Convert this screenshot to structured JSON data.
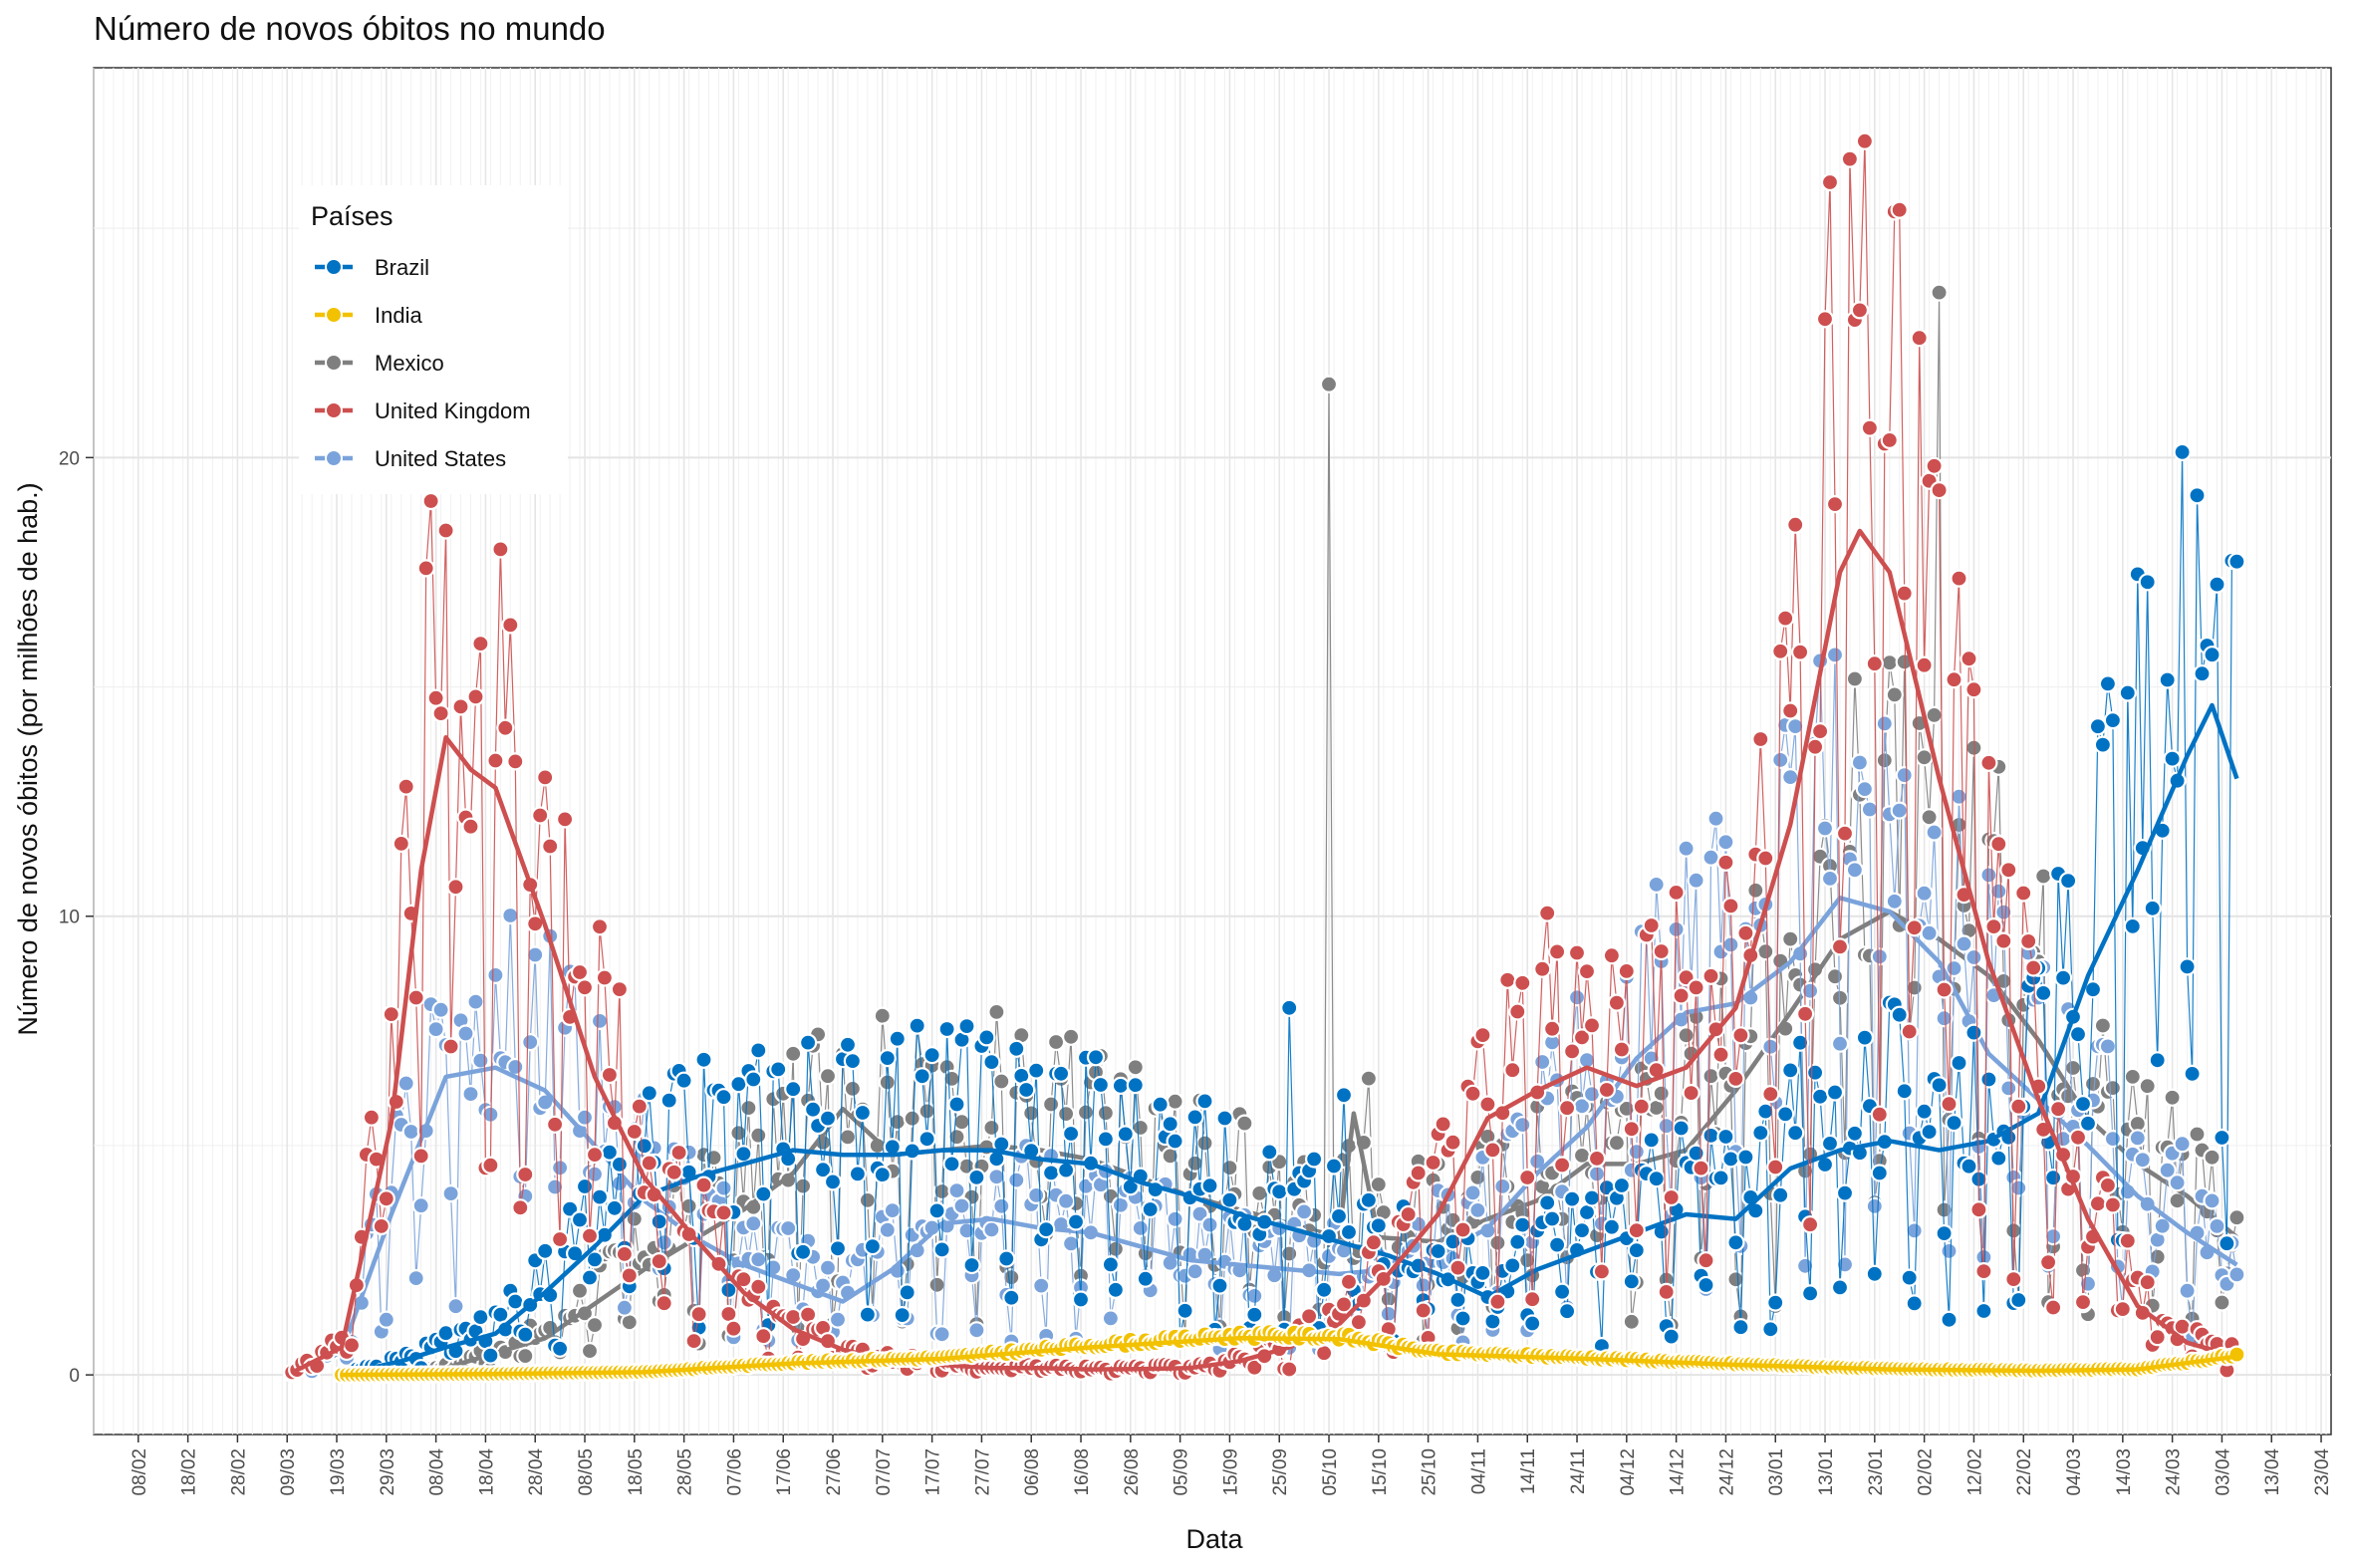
{
  "chart_data": {
    "type": "line",
    "title": "Número de novos óbitos no mundo",
    "xlabel": "Data",
    "ylabel": "Número de novos óbitos (por milhões de hab.)",
    "xlim": [
      "2020-01-30",
      "2021-04-25"
    ],
    "ylim": [
      -1.3,
      28.5
    ],
    "y_ticks": [
      0,
      10,
      20
    ],
    "x_ticks": [
      "08/02",
      "18/02",
      "28/02",
      "09/03",
      "19/03",
      "29/03",
      "08/04",
      "18/04",
      "28/04",
      "08/05",
      "18/05",
      "28/05",
      "07/06",
      "17/06",
      "27/06",
      "07/07",
      "17/07",
      "27/07",
      "06/08",
      "16/08",
      "26/08",
      "05/09",
      "15/09",
      "25/09",
      "05/10",
      "15/10",
      "25/10",
      "04/11",
      "14/11",
      "24/11",
      "04/12",
      "14/12",
      "24/12",
      "03/01",
      "13/01",
      "23/01",
      "02/02",
      "12/02",
      "22/02",
      "04/03",
      "14/03",
      "24/03",
      "03/04",
      "13/04",
      "23/04"
    ],
    "grid": true,
    "legend": {
      "title": "Países",
      "position": "top-left"
    },
    "series_style": "points = daily values, thick line = 7-day moving average",
    "series": [
      {
        "name": "Brazil",
        "color": "#0072c3",
        "points": [
          [
            "2020-03-20",
            0.01
          ],
          [
            "2020-04-01",
            0.3
          ],
          [
            "2020-04-10",
            0.6
          ],
          [
            "2020-04-20",
            0.9
          ],
          [
            "2020-04-30",
            1.8
          ],
          [
            "2020-05-10",
            2.8
          ],
          [
            "2020-05-20",
            3.9
          ],
          [
            "2020-05-30",
            4.3
          ],
          [
            "2020-06-09",
            4.6
          ],
          [
            "2020-06-19",
            4.9
          ],
          [
            "2020-06-29",
            4.8
          ],
          [
            "2020-07-09",
            4.8
          ],
          [
            "2020-07-19",
            4.9
          ],
          [
            "2020-07-29",
            4.9
          ],
          [
            "2020-08-08",
            4.7
          ],
          [
            "2020-08-18",
            4.6
          ],
          [
            "2020-08-28",
            4.2
          ],
          [
            "2020-09-07",
            3.9
          ],
          [
            "2020-09-17",
            3.5
          ],
          [
            "2020-09-27",
            3.2
          ],
          [
            "2020-10-07",
            2.9
          ],
          [
            "2020-10-17",
            2.6
          ],
          [
            "2020-10-27",
            2.2
          ],
          [
            "2020-11-06",
            1.7
          ],
          [
            "2020-11-16",
            2.3
          ],
          [
            "2020-11-26",
            2.7
          ],
          [
            "2020-12-06",
            3.1
          ],
          [
            "2020-12-16",
            3.5
          ],
          [
            "2020-12-26",
            3.4
          ],
          [
            "2021-01-06",
            4.5
          ],
          [
            "2021-01-16",
            4.9
          ],
          [
            "2021-01-26",
            5.1
          ],
          [
            "2021-02-05",
            4.9
          ],
          [
            "2021-02-15",
            5.1
          ],
          [
            "2021-02-25",
            5.7
          ],
          [
            "2021-03-07",
            8.7
          ],
          [
            "2021-03-17",
            11.0
          ],
          [
            "2021-03-27",
            13.5
          ],
          [
            "2021-04-01",
            14.6
          ],
          [
            "2021-04-06",
            13.0
          ]
        ],
        "daily_peaks": [
          [
            "2020-09-27",
            8.0
          ],
          [
            "2020-10-08",
            6.1
          ],
          [
            "2021-04-08",
            19.7
          ]
        ]
      },
      {
        "name": "India",
        "color": "#f2c100",
        "points": [
          [
            "2020-03-20",
            0.0
          ],
          [
            "2020-04-20",
            0.02
          ],
          [
            "2020-05-20",
            0.06
          ],
          [
            "2020-06-19",
            0.25
          ],
          [
            "2020-07-19",
            0.35
          ],
          [
            "2020-08-18",
            0.6
          ],
          [
            "2020-09-17",
            0.8
          ],
          [
            "2020-10-07",
            0.78
          ],
          [
            "2020-10-27",
            0.45
          ],
          [
            "2020-11-26",
            0.35
          ],
          [
            "2020-12-26",
            0.22
          ],
          [
            "2021-01-26",
            0.12
          ],
          [
            "2021-02-25",
            0.09
          ],
          [
            "2021-03-17",
            0.12
          ],
          [
            "2021-04-06",
            0.4
          ]
        ]
      },
      {
        "name": "Mexico",
        "color": "#7f7f7f",
        "points": [
          [
            "2020-03-20",
            0.0
          ],
          [
            "2020-04-10",
            0.15
          ],
          [
            "2020-04-30",
            0.8
          ],
          [
            "2020-05-20",
            2.3
          ],
          [
            "2020-06-09",
            3.6
          ],
          [
            "2020-06-19",
            4.4
          ],
          [
            "2020-06-29",
            5.8
          ],
          [
            "2020-07-09",
            4.8
          ],
          [
            "2020-07-19",
            4.9
          ],
          [
            "2020-07-29",
            5.0
          ],
          [
            "2020-08-08",
            4.9
          ],
          [
            "2020-08-18",
            4.7
          ],
          [
            "2020-08-28",
            4.3
          ],
          [
            "2020-09-07",
            3.9
          ],
          [
            "2020-09-17",
            3.6
          ],
          [
            "2020-09-27",
            3.3
          ],
          [
            "2020-10-07",
            3.0
          ],
          [
            "2020-10-10",
            5.7
          ],
          [
            "2020-10-15",
            3.0
          ],
          [
            "2020-10-27",
            2.9
          ],
          [
            "2020-11-06",
            3.4
          ],
          [
            "2020-11-16",
            3.8
          ],
          [
            "2020-11-26",
            4.6
          ],
          [
            "2020-12-06",
            4.6
          ],
          [
            "2020-12-16",
            4.9
          ],
          [
            "2020-12-26",
            6.2
          ],
          [
            "2021-01-06",
            7.9
          ],
          [
            "2021-01-16",
            9.5
          ],
          [
            "2021-01-26",
            10.1
          ],
          [
            "2021-02-05",
            9.5
          ],
          [
            "2021-02-15",
            8.7
          ],
          [
            "2021-02-25",
            7.3
          ],
          [
            "2021-03-07",
            5.6
          ],
          [
            "2021-03-17",
            4.6
          ],
          [
            "2021-03-27",
            3.9
          ],
          [
            "2021-04-06",
            3.0
          ]
        ],
        "daily_peaks": [
          [
            "2020-10-05",
            21.6
          ],
          [
            "2021-02-05",
            23.6
          ]
        ]
      },
      {
        "name": "United Kingdom",
        "color": "#cd4f4f",
        "points": [
          [
            "2020-03-10",
            0.05
          ],
          [
            "2020-03-20",
            0.6
          ],
          [
            "2020-03-30",
            5.5
          ],
          [
            "2020-04-05",
            11.0
          ],
          [
            "2020-04-10",
            13.9
          ],
          [
            "2020-04-15",
            13.2
          ],
          [
            "2020-04-20",
            12.8
          ],
          [
            "2020-04-30",
            9.8
          ],
          [
            "2020-05-10",
            6.5
          ],
          [
            "2020-05-20",
            4.3
          ],
          [
            "2020-05-30",
            3.0
          ],
          [
            "2020-06-09",
            1.8
          ],
          [
            "2020-06-19",
            1.0
          ],
          [
            "2020-06-29",
            0.55
          ],
          [
            "2020-07-09",
            0.3
          ],
          [
            "2020-07-19",
            0.22
          ],
          [
            "2020-07-29",
            0.15
          ],
          [
            "2020-08-08",
            0.15
          ],
          [
            "2020-08-18",
            0.12
          ],
          [
            "2020-08-28",
            0.13
          ],
          [
            "2020-09-07",
            0.15
          ],
          [
            "2020-09-17",
            0.3
          ],
          [
            "2020-09-27",
            0.6
          ],
          [
            "2020-10-07",
            1.1
          ],
          [
            "2020-10-17",
            2.2
          ],
          [
            "2020-10-27",
            3.5
          ],
          [
            "2020-11-06",
            5.6
          ],
          [
            "2020-11-16",
            6.2
          ],
          [
            "2020-11-26",
            6.7
          ],
          [
            "2020-12-06",
            6.3
          ],
          [
            "2020-12-16",
            6.7
          ],
          [
            "2020-12-26",
            8.0
          ],
          [
            "2021-01-06",
            12.0
          ],
          [
            "2021-01-16",
            17.5
          ],
          [
            "2021-01-20",
            18.4
          ],
          [
            "2021-01-26",
            17.5
          ],
          [
            "2021-02-05",
            13.0
          ],
          [
            "2021-02-15",
            9.0
          ],
          [
            "2021-02-25",
            6.0
          ],
          [
            "2021-03-07",
            3.4
          ],
          [
            "2021-03-17",
            1.5
          ],
          [
            "2021-03-27",
            0.7
          ],
          [
            "2021-04-06",
            0.4
          ]
        ],
        "daily_peaks": [
          [
            "2020-04-21",
            18.0
          ],
          [
            "2021-01-21",
            26.9
          ],
          [
            "2021-01-28",
            25.4
          ]
        ]
      },
      {
        "name": "United States",
        "color": "#7aa3db",
        "points": [
          [
            "2020-03-10",
            0.02
          ],
          [
            "2020-03-20",
            0.5
          ],
          [
            "2020-03-30",
            3.5
          ],
          [
            "2020-04-10",
            6.5
          ],
          [
            "2020-04-20",
            6.7
          ],
          [
            "2020-04-30",
            6.2
          ],
          [
            "2020-05-10",
            5.0
          ],
          [
            "2020-05-20",
            3.8
          ],
          [
            "2020-05-30",
            3.0
          ],
          [
            "2020-06-09",
            2.4
          ],
          [
            "2020-06-19",
            2.0
          ],
          [
            "2020-06-29",
            1.6
          ],
          [
            "2020-07-09",
            2.3
          ],
          [
            "2020-07-19",
            3.3
          ],
          [
            "2020-07-29",
            3.4
          ],
          [
            "2020-08-08",
            3.2
          ],
          [
            "2020-08-18",
            3.1
          ],
          [
            "2020-08-28",
            2.8
          ],
          [
            "2020-09-07",
            2.5
          ],
          [
            "2020-09-17",
            2.4
          ],
          [
            "2020-09-27",
            2.3
          ],
          [
            "2020-10-07",
            2.2
          ],
          [
            "2020-10-17",
            2.3
          ],
          [
            "2020-10-27",
            2.6
          ],
          [
            "2020-11-06",
            3.2
          ],
          [
            "2020-11-16",
            4.4
          ],
          [
            "2020-11-26",
            5.4
          ],
          [
            "2020-12-06",
            6.9
          ],
          [
            "2020-12-16",
            7.9
          ],
          [
            "2020-12-26",
            8.1
          ],
          [
            "2021-01-06",
            9.0
          ],
          [
            "2021-01-16",
            10.4
          ],
          [
            "2021-01-26",
            10.1
          ],
          [
            "2021-02-05",
            9.0
          ],
          [
            "2021-02-15",
            7.0
          ],
          [
            "2021-02-25",
            6.0
          ],
          [
            "2021-03-07",
            5.0
          ],
          [
            "2021-03-17",
            3.9
          ],
          [
            "2021-03-27",
            3.1
          ],
          [
            "2021-04-06",
            2.4
          ]
        ]
      }
    ]
  }
}
